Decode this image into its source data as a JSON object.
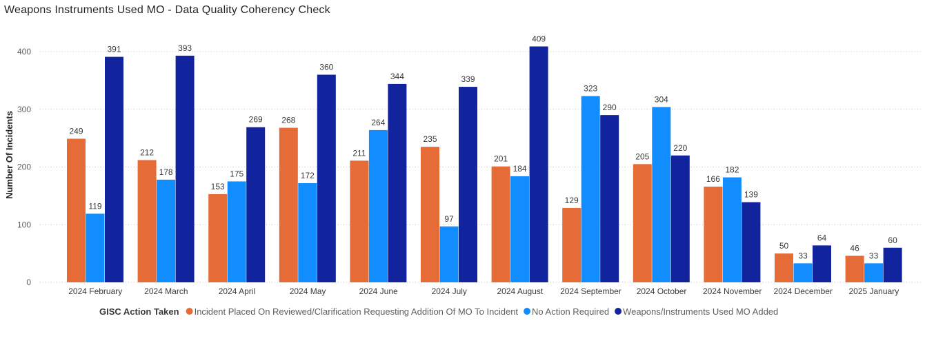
{
  "chart_data": {
    "type": "bar",
    "title": "Weapons Instruments Used MO - Data Quality Coherency Check",
    "xlabel": "",
    "ylabel": "Number Of Incidents",
    "ylim": [
      0,
      400
    ],
    "yticks": [
      0,
      100,
      200,
      300,
      400
    ],
    "grid": true,
    "legend_position": "bottom-left",
    "legend_title": "GISC Action Taken",
    "categories": [
      "2024 February",
      "2024 March",
      "2024 April",
      "2024 May",
      "2024 June",
      "2024 July",
      "2024 August",
      "2024 September",
      "2024 October",
      "2024 November",
      "2024 December",
      "2025 January"
    ],
    "series": [
      {
        "name": "Incident Placed On Reviewed/Clarification Requesting Addition Of MO To Incident",
        "color": "#e66c37",
        "values": [
          249,
          212,
          153,
          268,
          211,
          235,
          201,
          129,
          205,
          166,
          50,
          46
        ]
      },
      {
        "name": "No Action Required",
        "color": "#118dff",
        "values": [
          119,
          178,
          175,
          172,
          264,
          97,
          184,
          323,
          304,
          182,
          33,
          33
        ]
      },
      {
        "name": "Weapons/Instruments Used MO Added",
        "color": "#12239e",
        "values": [
          391,
          393,
          269,
          360,
          344,
          339,
          409,
          290,
          220,
          139,
          64,
          60
        ]
      }
    ]
  }
}
